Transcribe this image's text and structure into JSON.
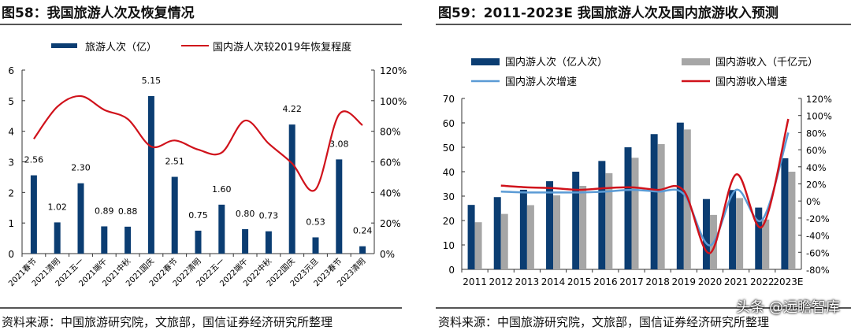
{
  "left": {
    "title": "图58：我国旅游人次及恢复情况",
    "source": "资料来源：中国旅游研究院，文旅部，国信证券经济研究所整理"
  },
  "right": {
    "title": "图59：2011-2023E 我国旅游人次及国内旅游收入预测",
    "source": "资料来源：中国旅游研究院，文旅部，国信证券经济研究所整理"
  },
  "watermark": "头条 @远瞻智库",
  "colors": {
    "navy": "#0b3d72",
    "red": "#d0121b",
    "gray": "#a6a6a6",
    "lightblue": "#5b9bd5"
  },
  "chart_data": [
    {
      "type": "bar+line",
      "categories": [
        "2021春节",
        "2021清明",
        "2021五一",
        "2021端午",
        "2021中秋",
        "2021国庆",
        "2022春节",
        "2022清明",
        "2022五一",
        "2022端午",
        "2022中秋",
        "2022国庆",
        "2023元旦",
        "2023春节",
        "2023清明"
      ],
      "series": [
        {
          "name": "旅游人次（亿）",
          "type": "bar",
          "axis": "left",
          "values": [
            2.56,
            1.02,
            2.3,
            0.89,
            0.88,
            5.15,
            2.51,
            0.75,
            1.6,
            0.8,
            0.73,
            4.22,
            0.53,
            3.08,
            0.24
          ],
          "labels": [
            "2.56",
            "1.02",
            "2.30",
            "0.89",
            "0.88",
            "5.15",
            "2.51",
            "0.75",
            "1.60",
            "0.80",
            "0.73",
            "4.22",
            "0.53",
            "3.08",
            "0.24"
          ]
        },
        {
          "name": "国内游人次较2019年恢复程度",
          "type": "line",
          "axis": "right",
          "values": [
            75,
            96,
            103,
            94,
            88,
            70,
            74,
            68,
            66,
            87,
            72,
            59,
            42,
            91,
            84
          ]
        }
      ],
      "yleft": {
        "range": [
          0,
          6
        ],
        "ticks": [
          "0",
          "1",
          "2",
          "3",
          "4",
          "5",
          "6"
        ]
      },
      "yright": {
        "range": [
          0,
          120
        ],
        "ticks": [
          "0%",
          "20%",
          "40%",
          "60%",
          "80%",
          "100%",
          "120%"
        ]
      },
      "legend": "top"
    },
    {
      "type": "bar+line",
      "categories": [
        "2011",
        "2012",
        "2013",
        "2014",
        "2015",
        "2016",
        "2017",
        "2018",
        "2019",
        "2020",
        "2021",
        "2022",
        "2023E"
      ],
      "series": [
        {
          "name": "国内游人次（亿人次）",
          "type": "bar",
          "axis": "left",
          "values": [
            26.4,
            29.6,
            32.6,
            36.1,
            40.0,
            44.4,
            50.0,
            55.4,
            60.1,
            28.8,
            32.5,
            25.3,
            45.5
          ]
        },
        {
          "name": "国内游收入（千亿元）",
          "type": "bar",
          "axis": "left",
          "values": [
            19.3,
            22.7,
            26.3,
            30.3,
            34.2,
            39.4,
            45.7,
            51.3,
            57.3,
            22.3,
            29.2,
            20.4,
            40.0
          ]
        },
        {
          "name": "国内游人次增速",
          "type": "line",
          "axis": "right",
          "values": [
            null,
            11,
            10,
            10,
            10,
            11,
            13,
            11,
            8,
            -52,
            13,
            -22,
            80
          ]
        },
        {
          "name": "国内游收入增速",
          "type": "line",
          "axis": "right",
          "values": [
            null,
            18,
            16,
            15,
            13,
            15,
            16,
            13,
            12,
            -61,
            31,
            -30,
            96
          ]
        }
      ],
      "yleft": {
        "range": [
          0,
          70
        ],
        "ticks": [
          "0",
          "10",
          "20",
          "30",
          "40",
          "50",
          "60",
          "70"
        ]
      },
      "yright": {
        "range": [
          -80,
          120
        ],
        "ticks": [
          "-80%",
          "-60%",
          "-40%",
          "-20%",
          "0%",
          "20%",
          "40%",
          "60%",
          "80%",
          "100%",
          "120%"
        ]
      },
      "legend": "top"
    }
  ]
}
